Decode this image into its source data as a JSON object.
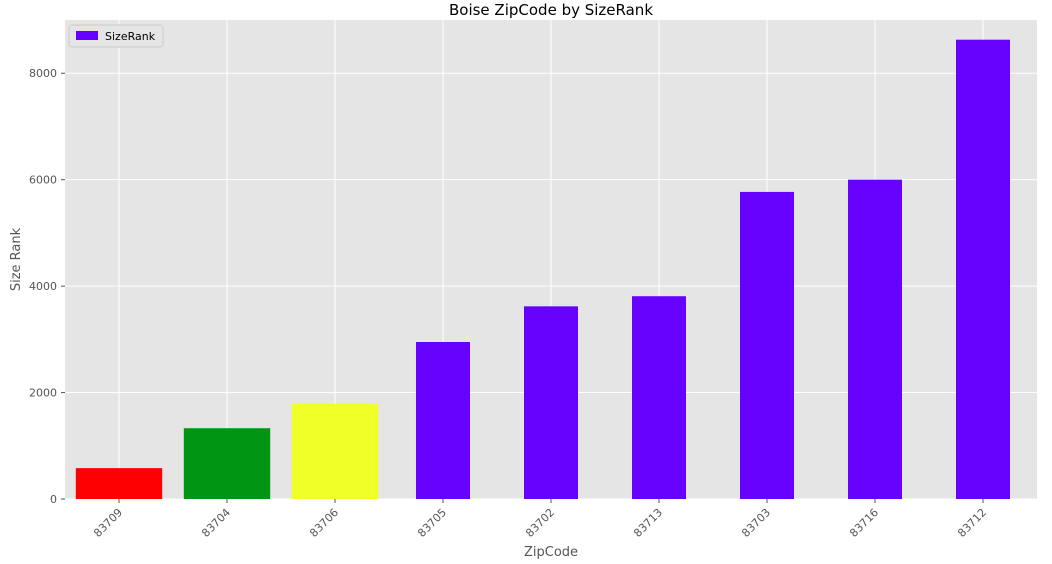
{
  "chart_data": {
    "type": "bar",
    "title": "Boise ZipCode by SizeRank",
    "xlabel": "ZipCode",
    "ylabel": "Size Rank",
    "categories": [
      "83709",
      "83704",
      "83706",
      "83705",
      "83702",
      "83713",
      "83703",
      "83716",
      "83712"
    ],
    "series": [
      {
        "name": "SizeRank",
        "values": [
          580,
          1330,
          1790,
          2950,
          3620,
          3810,
          5770,
          6000,
          8630
        ],
        "colors": [
          "#ff0000",
          "#009614",
          "#f0ff28",
          "#6600ff",
          "#6600ff",
          "#6600ff",
          "#6600ff",
          "#6600ff",
          "#6600ff"
        ]
      }
    ],
    "ylim": [
      0,
      9000
    ],
    "yticks": [
      0,
      2000,
      4000,
      6000,
      8000
    ],
    "grid": true,
    "legend": {
      "position": "top-left",
      "label": "SizeRank",
      "color": "#6600ff"
    },
    "background": "#e5e5e5",
    "grid_color": "#ffffff"
  }
}
